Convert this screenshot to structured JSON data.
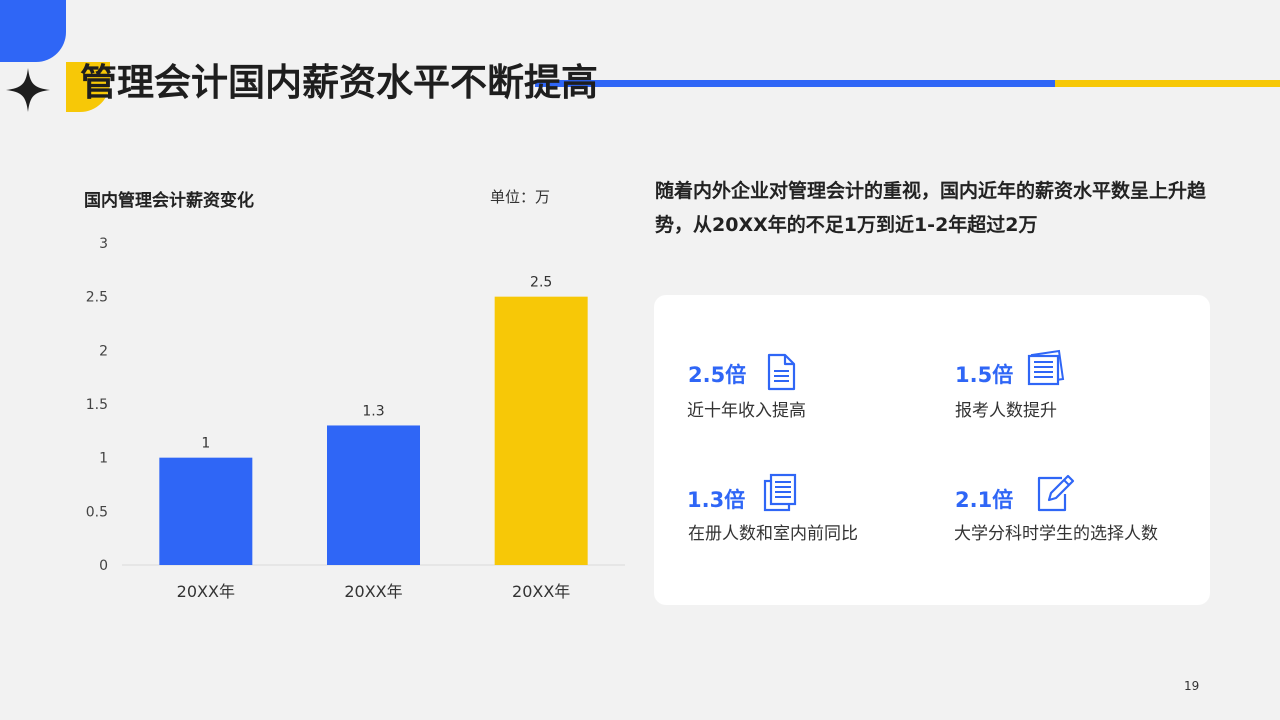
{
  "header": {
    "title": "管理会计国内薪资水平不断提高"
  },
  "chart": {
    "title": "国内管理会计薪资变化",
    "unit": "单位：万"
  },
  "chart_data": {
    "type": "bar",
    "categories": [
      "20XX年",
      "20XX年",
      "20XX年"
    ],
    "values": [
      1,
      1.3,
      2.5
    ],
    "bar_colors": [
      "#2f66f6",
      "#2f66f6",
      "#f7c807"
    ],
    "data_labels": [
      "1",
      "1.3",
      "2.5"
    ],
    "yticks": [
      "0",
      "0.5",
      "1",
      "1.5",
      "2",
      "2.5",
      "3"
    ],
    "ylim": [
      0,
      3
    ],
    "title": "国内管理会计薪资变化",
    "xlabel": "",
    "ylabel": "",
    "grid": false,
    "legend": "none"
  },
  "description": "随着内外企业对管理会计的重视，国内近年的薪资水平数呈上升趋势，从20XX年的不足1万到近1-2年超过2万",
  "stats": [
    {
      "value": "2.5倍",
      "label": "近十年收入提高",
      "icon": "document-icon"
    },
    {
      "value": "1.5倍",
      "label": "报考人数提升",
      "icon": "stacked-papers-icon"
    },
    {
      "value": "1.3倍",
      "label": "在册人数和室内前同比",
      "icon": "copy-document-icon"
    },
    {
      "value": "2.1倍",
      "label": "大学分科时学生的选择人数",
      "icon": "edit-document-icon"
    }
  ],
  "page_number": "19",
  "colors": {
    "accent_blue": "#2f66f6",
    "accent_yellow": "#f7c807",
    "background": "#f2f2f2"
  }
}
